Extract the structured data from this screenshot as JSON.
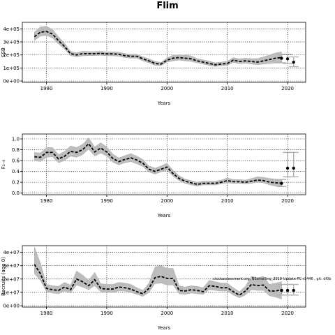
{
  "figure": {
    "title": "Flim",
    "annotation": "stockassessment.org, NSsmelling_2019-Update-FC-r1446 , git: df0b"
  },
  "chart_data": [
    {
      "type": "line",
      "ylabel": "SSB",
      "xlabel": "Years",
      "xlim": [
        1976,
        2023
      ],
      "ylim": [
        -10000,
        450000
      ],
      "xticks": [
        1980,
        1990,
        2000,
        2010,
        2020
      ],
      "yticks": [
        0,
        100000,
        200000,
        300000,
        400000
      ],
      "ytick_labels": [
        "0e+00",
        "1e+05",
        "2e+05",
        "3e+05",
        "4e+05"
      ],
      "grid": "dotted",
      "series": [
        {
          "x": [
            1978,
            1979,
            1980,
            1981,
            1982,
            1983,
            1984,
            1985,
            1986,
            1987,
            1988,
            1989,
            1990,
            1991,
            1992,
            1993,
            1994,
            1995,
            1996,
            1997,
            1998,
            1999,
            2000,
            2001,
            2002,
            2003,
            2004,
            2005,
            2006,
            2007,
            2008,
            2009,
            2010,
            2011,
            2012,
            2013,
            2014,
            2015,
            2016,
            2017,
            2018,
            2019
          ],
          "y": [
            340000,
            375000,
            380000,
            360000,
            310000,
            265000,
            210000,
            200000,
            210000,
            210000,
            210000,
            212000,
            208000,
            208000,
            205000,
            195000,
            190000,
            190000,
            170000,
            155000,
            135000,
            130000,
            160000,
            175000,
            180000,
            175000,
            170000,
            155000,
            145000,
            135000,
            125000,
            130000,
            135000,
            160000,
            150000,
            155000,
            150000,
            145000,
            155000,
            165000,
            175000,
            180000
          ],
          "lower": [
            310000,
            345000,
            350000,
            330000,
            285000,
            245000,
            195000,
            185000,
            193000,
            195000,
            195000,
            197000,
            193000,
            193000,
            190000,
            180000,
            175000,
            175000,
            155000,
            140000,
            120000,
            118000,
            145000,
            155000,
            160000,
            155000,
            150000,
            140000,
            130000,
            120000,
            112000,
            117000,
            120000,
            143000,
            133000,
            137000,
            130000,
            125000,
            130000,
            135000,
            138000,
            140000
          ],
          "upper": [
            375000,
            415000,
            420000,
            395000,
            340000,
            290000,
            228000,
            217000,
            228000,
            226000,
            226000,
            228000,
            224000,
            224000,
            221000,
            211000,
            206000,
            206000,
            186000,
            171000,
            151000,
            143000,
            177000,
            198000,
            203000,
            198000,
            193000,
            172000,
            162000,
            152000,
            140000,
            145000,
            152000,
            180000,
            170000,
            175000,
            172000,
            172000,
            185000,
            200000,
            215000,
            225000
          ]
        }
      ],
      "forecast_points": {
        "x": [
          2019,
          2020,
          2021
        ],
        "y": [
          175000,
          170000,
          145000
        ],
        "lower": [
          140000,
          135000,
          110000
        ],
        "upper": [
          205000,
          205000,
          185000
        ]
      }
    },
    {
      "type": "line",
      "ylabel": "F₂₋₆",
      "xlabel": "Years",
      "xlim": [
        1976,
        2023
      ],
      "ylim": [
        -0.03,
        1.09
      ],
      "xticks": [
        1980,
        1990,
        2000,
        2010,
        2020
      ],
      "yticks": [
        0.0,
        0.2,
        0.4,
        0.6,
        0.8,
        1.0
      ],
      "ytick_labels": [
        "0.0",
        "0.2",
        "0.4",
        "0.6",
        "0.8",
        "1.0"
      ],
      "grid": "dotted",
      "series": [
        {
          "x": [
            1978,
            1979,
            1980,
            1981,
            1982,
            1983,
            1984,
            1985,
            1986,
            1987,
            1988,
            1989,
            1990,
            1991,
            1992,
            1993,
            1994,
            1995,
            1996,
            1997,
            1998,
            1999,
            2000,
            2001,
            2002,
            2003,
            2004,
            2005,
            2006,
            2007,
            2008,
            2009,
            2010,
            2011,
            2012,
            2013,
            2014,
            2015,
            2016,
            2017,
            2018,
            2019
          ],
          "y": [
            0.67,
            0.66,
            0.75,
            0.75,
            0.63,
            0.68,
            0.77,
            0.75,
            0.8,
            0.91,
            0.76,
            0.83,
            0.76,
            0.64,
            0.58,
            0.62,
            0.65,
            0.61,
            0.55,
            0.44,
            0.4,
            0.44,
            0.48,
            0.36,
            0.27,
            0.22,
            0.19,
            0.16,
            0.18,
            0.18,
            0.18,
            0.2,
            0.23,
            0.21,
            0.21,
            0.2,
            0.22,
            0.24,
            0.23,
            0.2,
            0.19,
            0.18
          ],
          "lower": [
            0.6,
            0.58,
            0.66,
            0.67,
            0.56,
            0.6,
            0.68,
            0.66,
            0.71,
            0.81,
            0.68,
            0.74,
            0.68,
            0.57,
            0.52,
            0.56,
            0.58,
            0.54,
            0.49,
            0.39,
            0.35,
            0.39,
            0.42,
            0.31,
            0.23,
            0.18,
            0.15,
            0.13,
            0.15,
            0.15,
            0.15,
            0.17,
            0.19,
            0.18,
            0.18,
            0.17,
            0.18,
            0.2,
            0.19,
            0.15,
            0.13,
            0.12
          ],
          "upper": [
            0.75,
            0.74,
            0.84,
            0.84,
            0.71,
            0.77,
            0.87,
            0.84,
            0.9,
            1.02,
            0.85,
            0.93,
            0.85,
            0.72,
            0.65,
            0.69,
            0.73,
            0.68,
            0.62,
            0.5,
            0.46,
            0.5,
            0.55,
            0.42,
            0.32,
            0.26,
            0.23,
            0.2,
            0.22,
            0.22,
            0.22,
            0.24,
            0.28,
            0.25,
            0.25,
            0.24,
            0.27,
            0.3,
            0.29,
            0.27,
            0.26,
            0.25
          ]
        }
      ],
      "forecast_points": {
        "x": [
          2019,
          2020,
          2021
        ],
        "y": [
          0.18,
          0.46,
          0.46
        ],
        "lower": [
          0.12,
          0.3,
          0.3
        ],
        "upper": [
          0.25,
          0.75,
          0.75
        ]
      }
    },
    {
      "type": "line",
      "ylabel": "Recruits (age 0)",
      "xlabel": "Years",
      "xlim": [
        1976,
        2023
      ],
      "ylim": [
        -1000000,
        45000000
      ],
      "xticks": [
        1980,
        1990,
        2000,
        2010,
        2020
      ],
      "yticks": [
        0,
        10000000,
        20000000,
        30000000,
        40000000
      ],
      "ytick_labels": [
        "0e+00",
        "1e+07",
        "2e+07",
        "3e+07",
        "4e+07"
      ],
      "grid": "dotted",
      "series": [
        {
          "x": [
            1978,
            1979,
            1980,
            1981,
            1982,
            1983,
            1984,
            1985,
            1986,
            1987,
            1988,
            1989,
            1990,
            1991,
            1992,
            1993,
            1994,
            1995,
            1996,
            1997,
            1998,
            1999,
            2000,
            2001,
            2002,
            2003,
            2004,
            2005,
            2006,
            2007,
            2008,
            2009,
            2010,
            2011,
            2012,
            2013,
            2014,
            2015,
            2016,
            2017,
            2018,
            2019
          ],
          "y": [
            31000000,
            24000000,
            13000000,
            12000000,
            11500000,
            14000000,
            12000000,
            20000000,
            18000000,
            15000000,
            19500000,
            13000000,
            12500000,
            12500000,
            14000000,
            13500000,
            12500000,
            10500000,
            9000000,
            13000000,
            21000000,
            22000000,
            20500000,
            20500000,
            11500000,
            11000000,
            12000000,
            11500000,
            10500000,
            15000000,
            14500000,
            13500000,
            13500000,
            10500000,
            8000000,
            11000000,
            16000000,
            15000000,
            15500000,
            11000000,
            11000000,
            12000000
          ],
          "lower": [
            24000000,
            19000000,
            10500000,
            9500000,
            9000000,
            11000000,
            9500000,
            15500000,
            14000000,
            12000000,
            15000000,
            10500000,
            10000000,
            10000000,
            11000000,
            11000000,
            10000000,
            8500000,
            7000000,
            10000000,
            16500000,
            17000000,
            15500000,
            15500000,
            9000000,
            8500000,
            9500000,
            9000000,
            8500000,
            12000000,
            11500000,
            11000000,
            11000000,
            8000000,
            6000000,
            8000000,
            12000000,
            11500000,
            11500000,
            7500000,
            6500000,
            5000000
          ],
          "upper": [
            44000000,
            32000000,
            16000000,
            15000000,
            14500000,
            17500000,
            15500000,
            26000000,
            23000000,
            19000000,
            25000000,
            16500000,
            16000000,
            16000000,
            17500000,
            17000000,
            16000000,
            13500000,
            11500000,
            17000000,
            29000000,
            30000000,
            28000000,
            28000000,
            15000000,
            14000000,
            15000000,
            14500000,
            13500000,
            19000000,
            18000000,
            17000000,
            17000000,
            13500000,
            10500000,
            14500000,
            22000000,
            21000000,
            22000000,
            16000000,
            17000000,
            18000000
          ]
        }
      ],
      "forecast_points": {
        "x": [
          2019,
          2020,
          2021
        ],
        "y": [
          11500000,
          11500000,
          11500000
        ],
        "lower": [
          8000000,
          8000000,
          8000000
        ],
        "upper": [
          16000000,
          16000000,
          16000000
        ]
      }
    }
  ]
}
